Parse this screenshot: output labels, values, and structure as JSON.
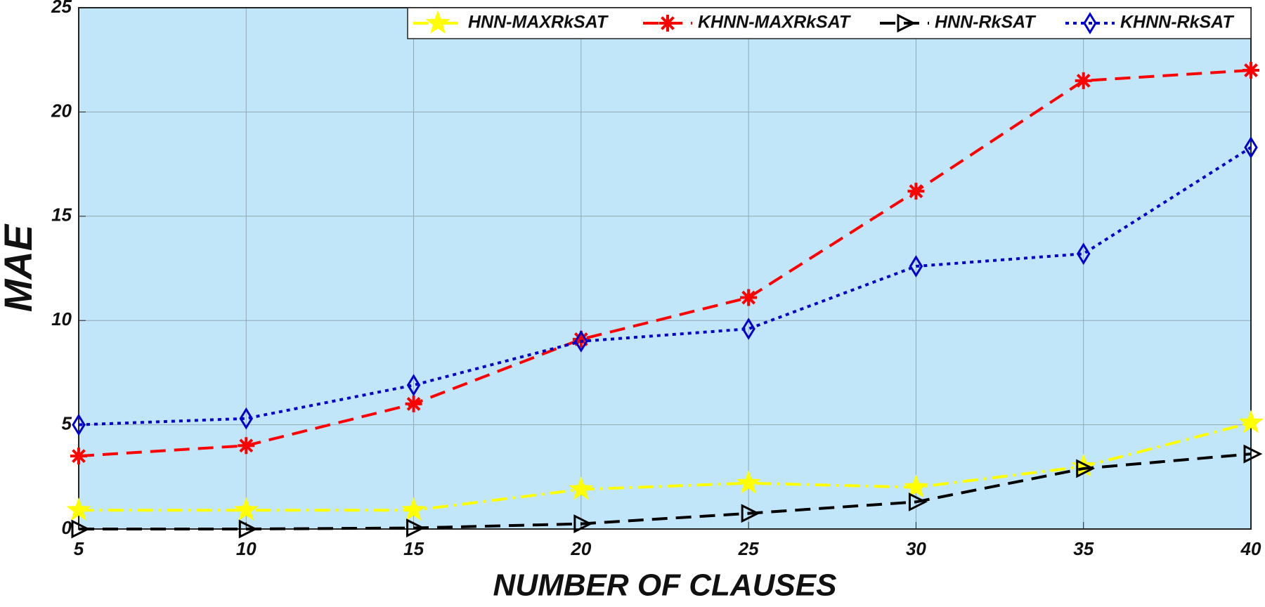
{
  "chart_data": {
    "type": "line",
    "xlabel": "NUMBER OF CLAUSES",
    "ylabel": "MAE",
    "x": [
      5,
      10,
      15,
      20,
      25,
      30,
      35,
      40
    ],
    "xlim": [
      5,
      40
    ],
    "xticks": [
      5,
      10,
      15,
      20,
      25,
      30,
      35,
      40
    ],
    "ylim": [
      0,
      25
    ],
    "yticks": [
      0,
      5,
      10,
      15,
      20,
      25
    ],
    "grid": true,
    "legend": "top-right",
    "series": [
      {
        "name": "HNN-MAXRkSAT",
        "color": "#ffff00",
        "dash": "dash-dot",
        "marker": "star",
        "values": [
          0.9,
          0.9,
          0.9,
          1.9,
          2.2,
          2.0,
          3.0,
          5.1
        ]
      },
      {
        "name": "KHNN-MAXRkSAT",
        "color": "#ff0000",
        "dash": "dashed",
        "marker": "asterisk",
        "values": [
          3.5,
          4.0,
          6.0,
          9.1,
          11.1,
          16.2,
          21.5,
          22.0
        ]
      },
      {
        "name": "HNN-RkSAT",
        "color": "#000000",
        "dash": "dashed",
        "marker": "triangle-right",
        "values": [
          0,
          0,
          0.05,
          0.25,
          0.75,
          1.3,
          2.9,
          3.6
        ]
      },
      {
        "name": "KHNN-RkSAT",
        "color": "#0000cc",
        "dash": "dotted",
        "marker": "diamond",
        "values": [
          5.0,
          5.3,
          6.9,
          9.0,
          9.6,
          12.6,
          13.2,
          18.3
        ]
      }
    ]
  }
}
